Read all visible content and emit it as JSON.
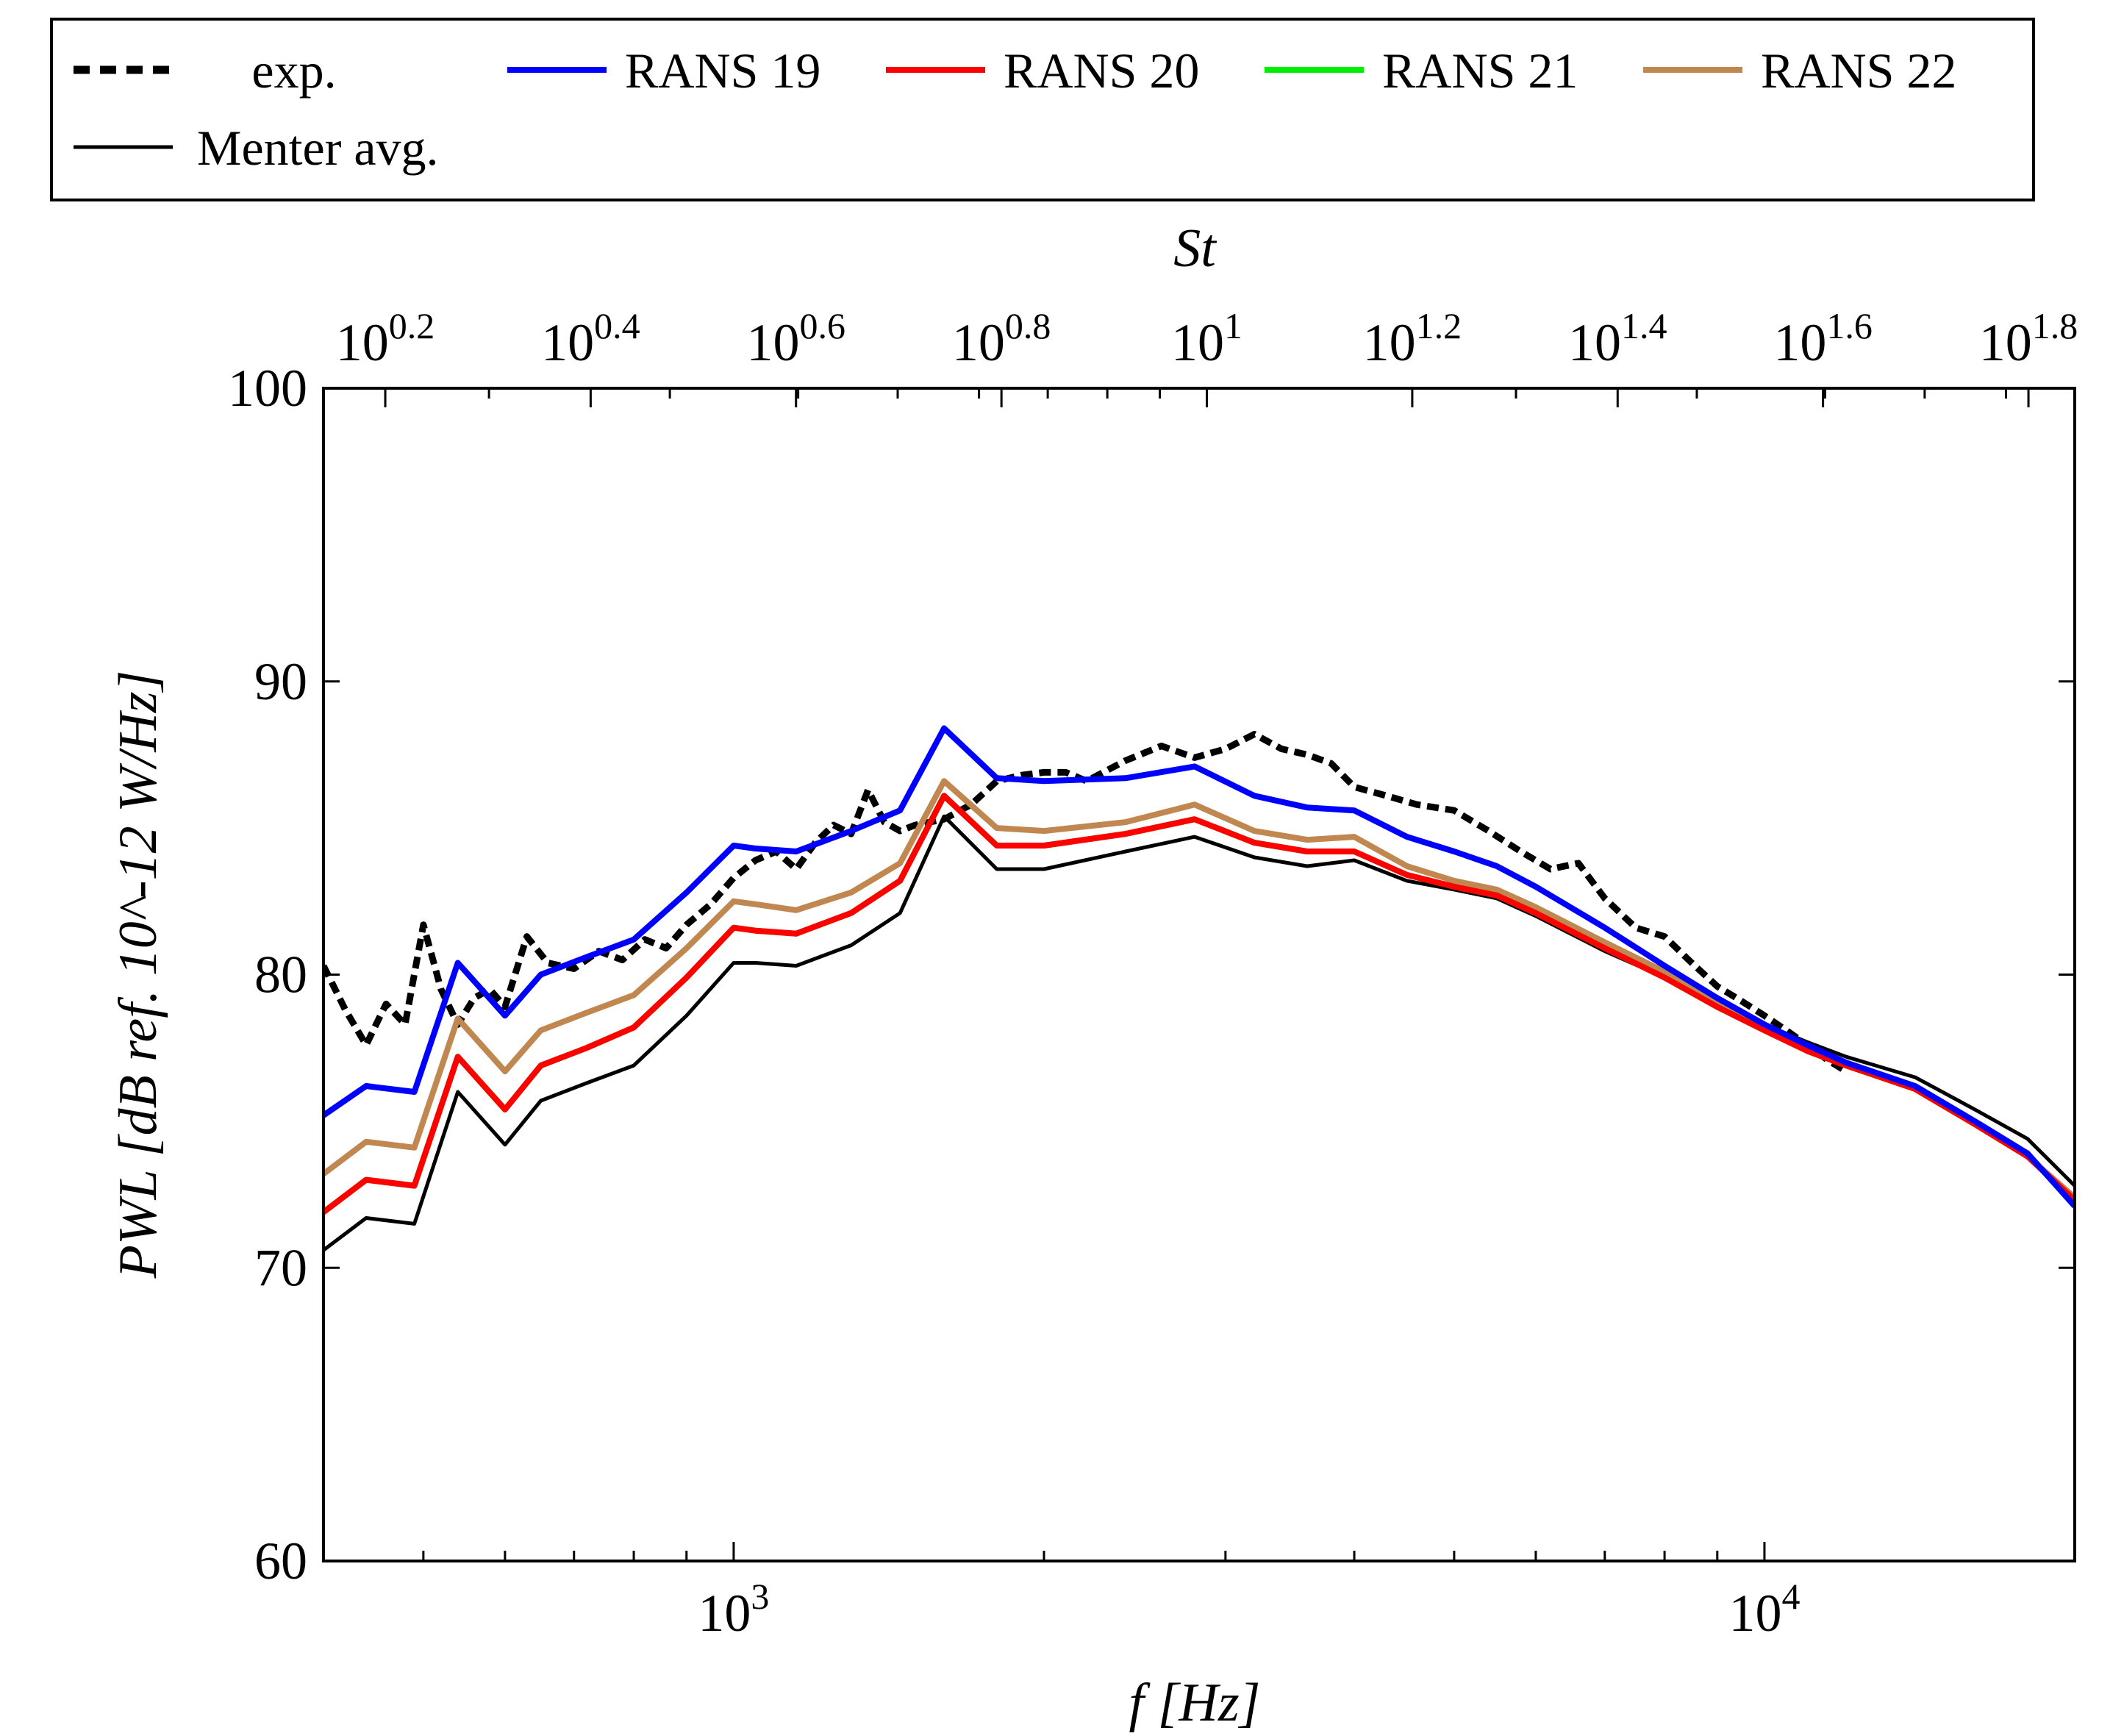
{
  "chart_data": {
    "type": "line",
    "title": "",
    "xlabel": "f [Hz]",
    "ylabel": "PWL [dB ref. 10^-12 W/Hz]",
    "x2label": "St",
    "xscale": "log",
    "xlim": [
      400,
      20000
    ],
    "ylim": [
      60,
      100
    ],
    "yticks": [
      60,
      70,
      80,
      90,
      100
    ],
    "xticks": [
      1000,
      10000
    ],
    "xtick_labels": [
      {
        "base": "10",
        "exp": "3"
      },
      {
        "base": "10",
        "exp": "4"
      }
    ],
    "st_xlim": [
      1.38,
      70
    ],
    "st_ticks": [
      {
        "value": 1.585,
        "base": "10",
        "exp": "0.2"
      },
      {
        "value": 2.512,
        "base": "10",
        "exp": "0.4"
      },
      {
        "value": 3.981,
        "base": "10",
        "exp": "0.6"
      },
      {
        "value": 6.31,
        "base": "10",
        "exp": "0.8"
      },
      {
        "value": 10.0,
        "base": "10",
        "exp": "1"
      },
      {
        "value": 15.85,
        "base": "10",
        "exp": "1.2"
      },
      {
        "value": 25.12,
        "base": "10",
        "exp": "1.4"
      },
      {
        "value": 39.81,
        "base": "10",
        "exp": "1.6"
      },
      {
        "value": 63.1,
        "base": "10",
        "exp": "1.8"
      }
    ],
    "legend_position": "top",
    "series": [
      {
        "name": "exp.",
        "color": "#000000",
        "style": "dashed",
        "x": [
          400,
          420,
          440,
          460,
          480,
          500,
          520,
          540,
          560,
          580,
          600,
          630,
          660,
          700,
          740,
          780,
          820,
          860,
          900,
          950,
          1000,
          1050,
          1100,
          1150,
          1200,
          1250,
          1300,
          1350,
          1400,
          1450,
          1500,
          1600,
          1700,
          1800,
          1900,
          2000,
          2100,
          2200,
          2400,
          2600,
          2800,
          3000,
          3200,
          3400,
          3600,
          3800,
          4000,
          4300,
          4600,
          5000,
          5400,
          5800,
          6200,
          6600,
          7000,
          7500,
          8000,
          8500,
          9000,
          9500,
          10000,
          10500,
          11000,
          11500,
          12000
        ],
        "y": [
          80.3,
          78.8,
          77.6,
          79.0,
          78.3,
          81.7,
          79.5,
          78.3,
          79.2,
          79.5,
          78.9,
          81.3,
          80.4,
          80.2,
          80.8,
          80.5,
          81.2,
          80.9,
          81.7,
          82.4,
          83.3,
          83.9,
          84.2,
          83.6,
          84.5,
          85.1,
          84.8,
          86.3,
          85.2,
          84.9,
          85.1,
          85.3,
          85.8,
          86.6,
          86.8,
          86.9,
          86.9,
          86.6,
          87.3,
          87.8,
          87.4,
          87.7,
          88.2,
          87.7,
          87.5,
          87.2,
          86.4,
          86.1,
          85.8,
          85.6,
          84.9,
          84.2,
          83.6,
          83.8,
          82.6,
          81.6,
          81.3,
          80.4,
          79.6,
          79.1,
          78.6,
          78.1,
          77.6,
          77.1,
          76.7
        ]
      },
      {
        "name": "RANS 19",
        "color": "#0000ff",
        "style": "solid",
        "x": [
          400,
          440,
          490,
          540,
          600,
          650,
          720,
          800,
          900,
          1000,
          1050,
          1150,
          1300,
          1450,
          1600,
          1800,
          2000,
          2400,
          2800,
          3200,
          3600,
          4000,
          4500,
          5000,
          5500,
          6000,
          7000,
          8000,
          9000,
          10000,
          11000,
          12000,
          14000,
          16000,
          18000,
          20000
        ],
        "y": [
          75.2,
          76.2,
          76.0,
          80.4,
          78.6,
          80.0,
          80.6,
          81.2,
          82.8,
          84.4,
          84.3,
          84.2,
          84.9,
          85.6,
          88.4,
          86.7,
          86.6,
          86.7,
          87.1,
          86.1,
          85.7,
          85.6,
          84.7,
          84.2,
          83.7,
          83.0,
          81.6,
          80.3,
          79.2,
          78.3,
          77.6,
          77.0,
          76.2,
          75.0,
          73.9,
          72.1
        ]
      },
      {
        "name": "RANS 20",
        "color": "#ff0000",
        "style": "solid",
        "x": [
          400,
          440,
          490,
          540,
          600,
          650,
          720,
          800,
          900,
          1000,
          1050,
          1150,
          1300,
          1450,
          1600,
          1800,
          2000,
          2400,
          2800,
          3200,
          3600,
          4000,
          4500,
          5000,
          5500,
          6000,
          7000,
          8000,
          9000,
          10000,
          11000,
          12000,
          14000,
          16000,
          18000,
          20000
        ],
        "y": [
          71.9,
          73.0,
          72.8,
          77.2,
          75.4,
          76.9,
          77.5,
          78.2,
          79.9,
          81.6,
          81.5,
          81.4,
          82.1,
          83.2,
          86.1,
          84.4,
          84.4,
          84.8,
          85.3,
          84.5,
          84.2,
          84.2,
          83.4,
          83.0,
          82.7,
          82.1,
          80.9,
          79.9,
          78.9,
          78.1,
          77.4,
          76.9,
          76.1,
          74.9,
          73.8,
          72.3
        ]
      },
      {
        "name": "RANS 21",
        "color": "#00ee00",
        "style": "solid",
        "x": [
          400,
          440,
          490,
          540,
          600,
          650,
          720,
          800,
          900,
          1000,
          1050,
          1150,
          1300,
          1450,
          1600,
          1800,
          2000,
          2400,
          2800,
          3200,
          3600,
          4000,
          4500,
          5000,
          5500,
          6000,
          7000,
          8000,
          9000,
          10000,
          11000,
          12000,
          14000,
          16000,
          18000,
          20000
        ],
        "y": [
          71.9,
          73.0,
          72.8,
          77.2,
          75.4,
          76.9,
          77.5,
          78.2,
          79.9,
          81.6,
          81.5,
          81.4,
          82.1,
          83.2,
          86.1,
          84.4,
          84.4,
          84.8,
          85.3,
          84.5,
          84.2,
          84.2,
          83.4,
          83.0,
          82.7,
          82.1,
          80.9,
          79.9,
          78.9,
          78.1,
          77.4,
          76.9,
          76.1,
          74.9,
          73.8,
          72.3
        ]
      },
      {
        "name": "RANS 22",
        "color": "#c08850",
        "style": "solid",
        "x": [
          400,
          440,
          490,
          540,
          600,
          650,
          720,
          800,
          900,
          1000,
          1050,
          1150,
          1300,
          1450,
          1600,
          1800,
          2000,
          2400,
          2800,
          3200,
          3600,
          4000,
          4500,
          5000,
          5500,
          6000,
          7000,
          8000,
          9000,
          10000,
          11000,
          12000,
          14000,
          16000,
          18000,
          20000
        ],
        "y": [
          73.2,
          74.3,
          74.1,
          78.5,
          76.7,
          78.1,
          78.7,
          79.3,
          80.9,
          82.5,
          82.4,
          82.2,
          82.8,
          83.8,
          86.6,
          85.0,
          84.9,
          85.2,
          85.8,
          84.9,
          84.6,
          84.7,
          83.7,
          83.2,
          82.9,
          82.3,
          81.1,
          80.1,
          79.1,
          78.2,
          77.5,
          76.9,
          76.1,
          74.9,
          73.8,
          72.4
        ]
      },
      {
        "name": "Menter avg.",
        "color": "#000000",
        "style": "solid-thin",
        "x": [
          400,
          440,
          490,
          540,
          600,
          650,
          720,
          800,
          900,
          1000,
          1050,
          1150,
          1300,
          1450,
          1600,
          1800,
          2000,
          2400,
          2800,
          3200,
          3600,
          4000,
          4500,
          5000,
          5500,
          6000,
          7000,
          8000,
          9000,
          10000,
          11000,
          12000,
          14000,
          16000,
          18000,
          20000
        ],
        "y": [
          70.6,
          71.7,
          71.5,
          76.0,
          74.2,
          75.7,
          76.3,
          76.9,
          78.6,
          80.4,
          80.4,
          80.3,
          81.0,
          82.1,
          85.4,
          83.6,
          83.6,
          84.2,
          84.7,
          84.0,
          83.7,
          83.9,
          83.2,
          82.9,
          82.6,
          82.0,
          80.8,
          79.9,
          79.0,
          78.3,
          77.7,
          77.2,
          76.5,
          75.4,
          74.4,
          72.8
        ]
      }
    ]
  }
}
